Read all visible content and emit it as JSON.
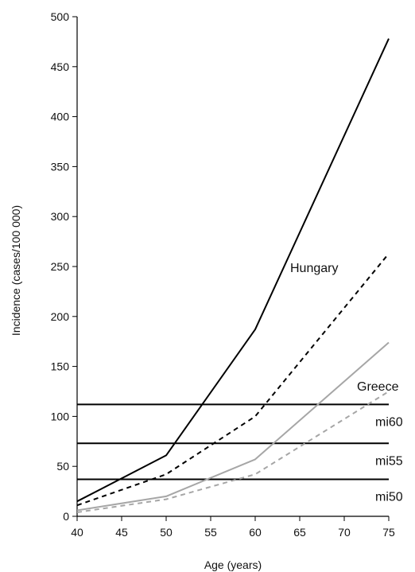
{
  "chart_data": {
    "type": "line",
    "title": "",
    "xlabel": "Age (years)",
    "ylabel": "Incidence (cases/100 000)",
    "xlim": [
      40,
      75
    ],
    "ylim": [
      0,
      500
    ],
    "xticks": [
      "40",
      "45",
      "50",
      "55",
      "60",
      "65",
      "70",
      "75"
    ],
    "yticks": [
      "0",
      "50",
      "100",
      "150",
      "200",
      "250",
      "300",
      "350",
      "400",
      "450",
      "500"
    ],
    "grid": false,
    "legend": "none",
    "series": [
      {
        "name": "Hungary",
        "color": "#000000",
        "dash": "solid",
        "x": [
          40,
          50,
          60,
          75
        ],
        "y": [
          15,
          61,
          187,
          478
        ]
      },
      {
        "color": "#000000",
        "dash": "dashed",
        "x": [
          40,
          50,
          60,
          75
        ],
        "y": [
          11,
          42,
          100,
          263
        ]
      },
      {
        "name": "Greece",
        "color": "#a6a6a6",
        "dash": "solid",
        "x": [
          40,
          50,
          60,
          75
        ],
        "y": [
          6,
          20,
          57,
          174
        ]
      },
      {
        "color": "#a6a6a6",
        "dash": "dashed",
        "x": [
          40,
          50,
          60,
          75
        ],
        "y": [
          4,
          17,
          42,
          125
        ]
      }
    ],
    "reference_lines": [
      {
        "name": "mi60",
        "y": 112
      },
      {
        "name": "mi55",
        "y": 73
      },
      {
        "name": "mi50",
        "y": 37
      }
    ]
  }
}
